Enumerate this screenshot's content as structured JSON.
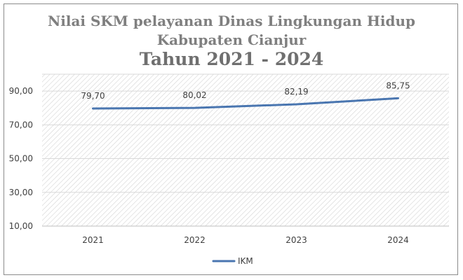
{
  "title": {
    "line1": "Nilai SKM pelayanan Dinas Lingkungan Hidup",
    "line2": "Kabupaten Cianjur",
    "line3": "Tahun 2021 - 2024"
  },
  "colors": {
    "series": "#4a76b0",
    "grid": "#d9d9d9",
    "hatch": "#cfcfcf"
  },
  "chart_data": {
    "type": "line",
    "categories": [
      "2021",
      "2022",
      "2023",
      "2024"
    ],
    "series": [
      {
        "name": "IKM",
        "values": [
          79.7,
          80.02,
          82.19,
          85.75
        ],
        "labels": [
          "79,70",
          "80,02",
          "82,19",
          "85,75"
        ]
      }
    ],
    "y_ticks": [
      10,
      30,
      50,
      70,
      90
    ],
    "y_tick_labels": [
      "10,00",
      "30,00",
      "50,00",
      "70,00",
      "90,00"
    ],
    "ylim": [
      10,
      100
    ],
    "grid": true,
    "legend_position": "bottom"
  }
}
